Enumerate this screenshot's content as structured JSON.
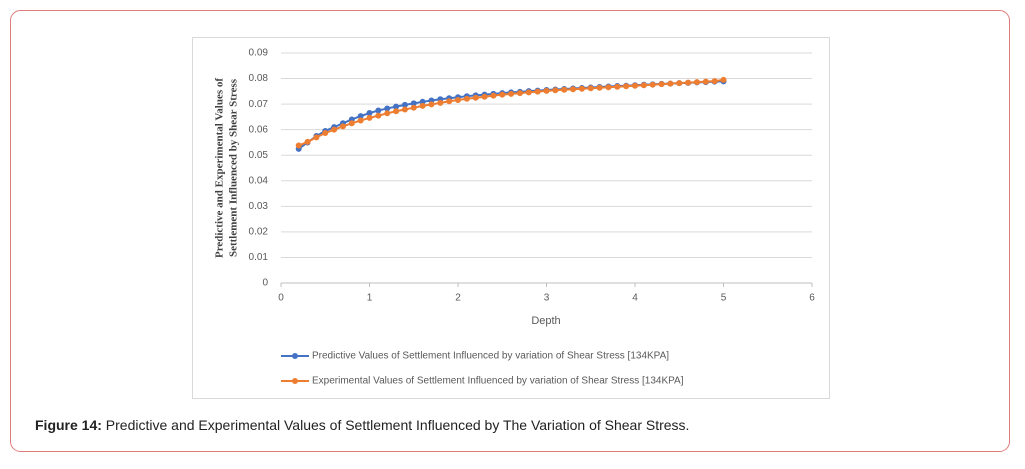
{
  "chart_data": {
    "type": "line",
    "ylabel": [
      "Predictive and Experimental Values of",
      "Settlement Influenced by Shear Stress"
    ],
    "xlabel": "Depth",
    "x": [
      0.2,
      0.3,
      0.4,
      0.5,
      0.6,
      0.7,
      0.8,
      0.9,
      1.0,
      1.1,
      1.2,
      1.3,
      1.4,
      1.5,
      1.6,
      1.7,
      1.8,
      1.9,
      2.0,
      2.1,
      2.2,
      2.3,
      2.4,
      2.5,
      2.6,
      2.7,
      2.8,
      2.9,
      3.0,
      3.1,
      3.2,
      3.3,
      3.4,
      3.5,
      3.6,
      3.7,
      3.8,
      3.9,
      4.0,
      4.1,
      4.2,
      4.3,
      4.4,
      4.5,
      4.6,
      4.7,
      4.8,
      4.9,
      5.0
    ],
    "series": [
      {
        "name": "Predictive Values of Settlement Influenced by variation of Shear Stress [134KPA]",
        "color": "#4472c4",
        "values": [
          0.0525,
          0.055,
          0.0575,
          0.0595,
          0.061,
          0.0625,
          0.064,
          0.0653,
          0.0665,
          0.0675,
          0.0683,
          0.069,
          0.0697,
          0.0703,
          0.0709,
          0.0714,
          0.0719,
          0.0723,
          0.0727,
          0.0731,
          0.0734,
          0.0737,
          0.074,
          0.0743,
          0.0746,
          0.0748,
          0.0751,
          0.0753,
          0.0755,
          0.0757,
          0.0759,
          0.0761,
          0.0763,
          0.0765,
          0.0767,
          0.0769,
          0.0771,
          0.0772,
          0.0774,
          0.0776,
          0.0777,
          0.0779,
          0.078,
          0.0782,
          0.0783,
          0.0785,
          0.0786,
          0.0788,
          0.0789
        ]
      },
      {
        "name": "Experimental Values of Settlement Influenced by variation of Shear Stress [134KPA]",
        "color": "#ed7d31",
        "values": [
          0.0538,
          0.0552,
          0.057,
          0.0587,
          0.06,
          0.0613,
          0.0625,
          0.0636,
          0.0646,
          0.0655,
          0.0664,
          0.0672,
          0.0679,
          0.0686,
          0.0693,
          0.0699,
          0.0705,
          0.0711,
          0.0716,
          0.0721,
          0.0725,
          0.0729,
          0.0733,
          0.0737,
          0.074,
          0.0743,
          0.0746,
          0.0749,
          0.0752,
          0.0754,
          0.0756,
          0.0758,
          0.076,
          0.0762,
          0.0764,
          0.0766,
          0.0768,
          0.077,
          0.0772,
          0.0774,
          0.0776,
          0.0778,
          0.078,
          0.0782,
          0.0784,
          0.0786,
          0.0788,
          0.079,
          0.0795
        ]
      }
    ],
    "xlim": [
      0,
      6
    ],
    "xticks": [
      0,
      1,
      2,
      3,
      4,
      5,
      6
    ],
    "ylim": [
      0,
      0.09
    ],
    "yticks": [
      0,
      0.01,
      0.02,
      0.03,
      0.04,
      0.05,
      0.06,
      0.07,
      0.08,
      0.09
    ],
    "grid": true,
    "legend": "bottom"
  },
  "caption": {
    "label": "Figure 14:",
    "text": " Predictive and Experimental Values of Settlement Influenced by The Variation of Shear Stress."
  }
}
